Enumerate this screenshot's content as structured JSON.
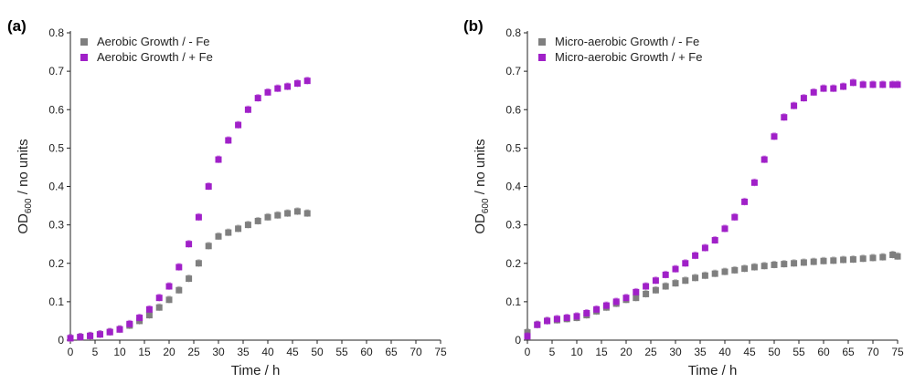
{
  "chart_data": [
    {
      "type": "scatter",
      "panel_label": "(a)",
      "xlabel": "Time / h",
      "ylabel_main": "OD",
      "ylabel_sub": "600",
      "ylabel_rest": " / no units",
      "xlim": [
        0,
        75
      ],
      "ylim": [
        0,
        0.8
      ],
      "xticks": [
        0,
        5,
        10,
        15,
        20,
        25,
        30,
        35,
        40,
        45,
        50,
        55,
        60,
        65,
        70,
        75
      ],
      "yticks": [
        0,
        0.1,
        0.2,
        0.3,
        0.4,
        0.5,
        0.6,
        0.7,
        0.8
      ],
      "ytick_labels": [
        "0",
        "0.1",
        "0.2",
        "0.3",
        "0.4",
        "0.5",
        "0.6",
        "0.7",
        "0.8"
      ],
      "grid": false,
      "legend_position": "top-left",
      "error_bars": true,
      "series": [
        {
          "name": "Aerobic Growth / - Fe",
          "color": "#7f7f7f",
          "x": [
            0,
            2,
            4,
            6,
            8,
            10,
            12,
            14,
            16,
            18,
            20,
            22,
            24,
            26,
            28,
            30,
            32,
            34,
            36,
            38,
            40,
            42,
            44,
            46,
            48
          ],
          "y": [
            0.005,
            0.008,
            0.011,
            0.015,
            0.021,
            0.028,
            0.038,
            0.05,
            0.065,
            0.085,
            0.105,
            0.13,
            0.16,
            0.2,
            0.245,
            0.27,
            0.28,
            0.29,
            0.3,
            0.31,
            0.32,
            0.325,
            0.33,
            0.335,
            0.33
          ]
        },
        {
          "name": "Aerobic Growth / + Fe",
          "color": "#a020c8",
          "x": [
            0,
            2,
            4,
            6,
            8,
            10,
            12,
            14,
            16,
            18,
            20,
            22,
            24,
            26,
            28,
            30,
            32,
            34,
            36,
            38,
            40,
            42,
            44,
            46,
            48
          ],
          "y": [
            0.005,
            0.008,
            0.011,
            0.015,
            0.021,
            0.028,
            0.042,
            0.058,
            0.08,
            0.11,
            0.14,
            0.19,
            0.25,
            0.32,
            0.4,
            0.47,
            0.52,
            0.56,
            0.6,
            0.63,
            0.645,
            0.655,
            0.66,
            0.668,
            0.675
          ]
        }
      ]
    },
    {
      "type": "scatter",
      "panel_label": "(b)",
      "xlabel": "Time / h",
      "ylabel_main": "OD",
      "ylabel_sub": "600",
      "ylabel_rest": " / no units",
      "xlim": [
        0,
        75
      ],
      "ylim": [
        0,
        0.8
      ],
      "xticks": [
        0,
        5,
        10,
        15,
        20,
        25,
        30,
        35,
        40,
        45,
        50,
        55,
        60,
        65,
        70,
        75
      ],
      "yticks": [
        0,
        0.1,
        0.2,
        0.3,
        0.4,
        0.5,
        0.6,
        0.7,
        0.8
      ],
      "ytick_labels": [
        "0",
        "0.1",
        "0.2",
        "0.3",
        "0.4",
        "0.5",
        "0.6",
        "0.7",
        "0.8"
      ],
      "grid": false,
      "legend_position": "top-left",
      "error_bars": true,
      "series": [
        {
          "name": "Micro-aerobic Growth / -  Fe",
          "color": "#7f7f7f",
          "x": [
            0,
            2,
            4,
            6,
            8,
            10,
            12,
            14,
            16,
            18,
            20,
            22,
            24,
            26,
            28,
            30,
            32,
            34,
            36,
            38,
            40,
            42,
            44,
            46,
            48,
            50,
            52,
            54,
            56,
            58,
            60,
            62,
            64,
            66,
            68,
            70,
            72,
            74,
            75
          ],
          "y": [
            0.02,
            0.04,
            0.05,
            0.052,
            0.055,
            0.058,
            0.065,
            0.075,
            0.085,
            0.095,
            0.105,
            0.11,
            0.12,
            0.13,
            0.14,
            0.148,
            0.155,
            0.162,
            0.168,
            0.173,
            0.178,
            0.182,
            0.186,
            0.19,
            0.193,
            0.196,
            0.198,
            0.2,
            0.202,
            0.204,
            0.206,
            0.207,
            0.209,
            0.21,
            0.212,
            0.214,
            0.216,
            0.222,
            0.218
          ]
        },
        {
          "name": "Micro-aerobic Growth / + Fe",
          "color": "#a020c8",
          "x": [
            0,
            2,
            4,
            6,
            8,
            10,
            12,
            14,
            16,
            18,
            20,
            22,
            24,
            26,
            28,
            30,
            32,
            34,
            36,
            38,
            40,
            42,
            44,
            46,
            48,
            50,
            52,
            54,
            56,
            58,
            60,
            62,
            64,
            66,
            68,
            70,
            72,
            74,
            75
          ],
          "y": [
            0.01,
            0.04,
            0.05,
            0.055,
            0.058,
            0.062,
            0.07,
            0.08,
            0.09,
            0.1,
            0.11,
            0.125,
            0.14,
            0.155,
            0.17,
            0.185,
            0.2,
            0.22,
            0.24,
            0.26,
            0.29,
            0.32,
            0.36,
            0.41,
            0.47,
            0.53,
            0.58,
            0.61,
            0.63,
            0.645,
            0.655,
            0.655,
            0.66,
            0.67,
            0.665,
            0.665,
            0.665,
            0.665,
            0.665
          ]
        }
      ]
    }
  ]
}
